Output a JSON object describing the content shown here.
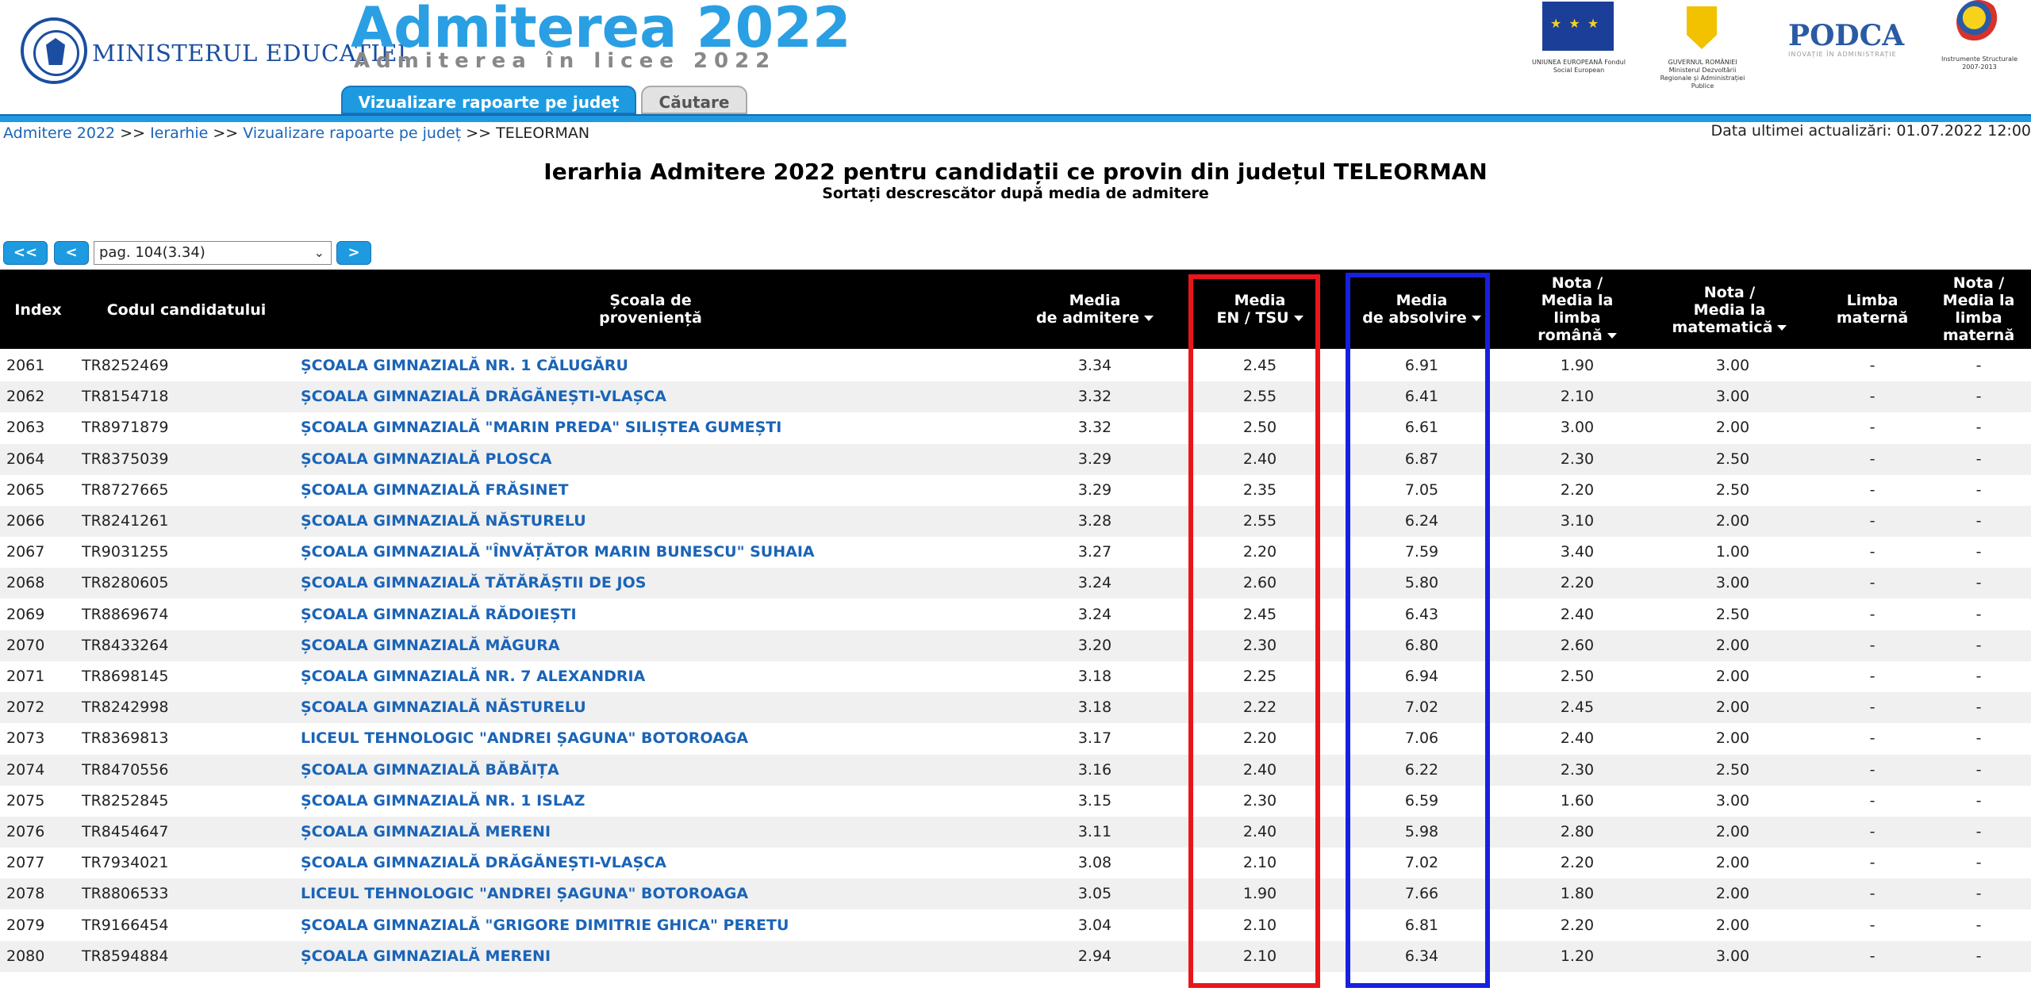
{
  "header": {
    "ministry_name": "MINISTERUL EDUCAȚIEI",
    "app_title": "Admiterea 2022",
    "app_subtitle": "Admiterea în licee 2022",
    "tabs": [
      {
        "label": "Vizualizare rapoarte pe județ",
        "active": true
      },
      {
        "label": "Căutare",
        "active": false
      }
    ],
    "logos": [
      {
        "caption": "UNIUNEA EUROPEANĂ Fondul Social European"
      },
      {
        "caption": "GUVERNUL ROMÂNIEI Ministerul Dezvoltării Regionale și Administrației Publice"
      },
      {
        "name": "PODCA",
        "tagline": "INOVAȚIE ÎN ADMINISTRAȚIE"
      },
      {
        "caption": "Instrumente Structurale 2007-2013"
      }
    ],
    "accent_color": "#1e9be0"
  },
  "breadcrumb": {
    "items": [
      "Admitere 2022",
      "Ierarhie",
      "Vizualizare rapoarte pe județ"
    ],
    "separator": ">>",
    "current": "TELEORMAN"
  },
  "last_update": "Data ultimei actualizări: 01.07.2022 12:00",
  "title": "Ierarhia Admitere 2022 pentru candidații ce provin din județul TELEORMAN",
  "subtitle": "Sortați descrescător după media de admitere",
  "pagination": {
    "first_label": "<<",
    "prev_label": "<",
    "next_label": ">",
    "selected_page": "pag. 104(3.34)"
  },
  "table": {
    "columns": [
      {
        "line1": "Index",
        "line2": "",
        "line3": "",
        "line4": ""
      },
      {
        "line1": "Codul candidatului",
        "line2": "",
        "line3": "",
        "line4": ""
      },
      {
        "line1": "Școala de",
        "line2": "proveniență",
        "line3": "",
        "line4": ""
      },
      {
        "line1": "Media",
        "line2": "de admitere",
        "line3": "",
        "line4": ""
      },
      {
        "line1": "Media",
        "line2": "EN / TSU",
        "line3": "",
        "line4": ""
      },
      {
        "line1": "Media",
        "line2": "de absolvire",
        "line3": "",
        "line4": ""
      },
      {
        "line1": "Nota /",
        "line2": "Media la",
        "line3": "limba",
        "line4": "română"
      },
      {
        "line1": "Nota /",
        "line2": "Media la",
        "line3": "matematică",
        "line4": ""
      },
      {
        "line1": "Limba",
        "line2": "maternă",
        "line3": "",
        "line4": ""
      },
      {
        "line1": "Nota /",
        "line2": "Media la",
        "line3": "limba",
        "line4": "maternă"
      }
    ],
    "rows": [
      [
        "2061",
        "TR8252469",
        "ȘCOALA GIMNAZIALĂ NR. 1 CĂLUGĂRU",
        "3.34",
        "2.45",
        "6.91",
        "1.90",
        "3.00",
        "-",
        "-"
      ],
      [
        "2062",
        "TR8154718",
        "ȘCOALA GIMNAZIALĂ DRĂGĂNEȘTI-VLAȘCA",
        "3.32",
        "2.55",
        "6.41",
        "2.10",
        "3.00",
        "-",
        "-"
      ],
      [
        "2063",
        "TR8971879",
        "ȘCOALA GIMNAZIALĂ \"MARIN PREDA\" SILIȘTEA GUMEȘTI",
        "3.32",
        "2.50",
        "6.61",
        "3.00",
        "2.00",
        "-",
        "-"
      ],
      [
        "2064",
        "TR8375039",
        "ȘCOALA GIMNAZIALĂ PLOSCA",
        "3.29",
        "2.40",
        "6.87",
        "2.30",
        "2.50",
        "-",
        "-"
      ],
      [
        "2065",
        "TR8727665",
        "ȘCOALA GIMNAZIALĂ FRĂSINET",
        "3.29",
        "2.35",
        "7.05",
        "2.20",
        "2.50",
        "-",
        "-"
      ],
      [
        "2066",
        "TR8241261",
        "ȘCOALA GIMNAZIALĂ NĂSTURELU",
        "3.28",
        "2.55",
        "6.24",
        "3.10",
        "2.00",
        "-",
        "-"
      ],
      [
        "2067",
        "TR9031255",
        "ȘCOALA GIMNAZIALĂ \"ÎNVĂȚĂTOR MARIN BUNESCU\" SUHAIA",
        "3.27",
        "2.20",
        "7.59",
        "3.40",
        "1.00",
        "-",
        "-"
      ],
      [
        "2068",
        "TR8280605",
        "ȘCOALA GIMNAZIALĂ TĂTĂRĂȘTII DE JOS",
        "3.24",
        "2.60",
        "5.80",
        "2.20",
        "3.00",
        "-",
        "-"
      ],
      [
        "2069",
        "TR8869674",
        "ȘCOALA GIMNAZIALĂ RĂDOIEȘTI",
        "3.24",
        "2.45",
        "6.43",
        "2.40",
        "2.50",
        "-",
        "-"
      ],
      [
        "2070",
        "TR8433264",
        "ȘCOALA GIMNAZIALĂ MĂGURA",
        "3.20",
        "2.30",
        "6.80",
        "2.60",
        "2.00",
        "-",
        "-"
      ],
      [
        "2071",
        "TR8698145",
        "ȘCOALA GIMNAZIALĂ NR. 7 ALEXANDRIA",
        "3.18",
        "2.25",
        "6.94",
        "2.50",
        "2.00",
        "-",
        "-"
      ],
      [
        "2072",
        "TR8242998",
        "ȘCOALA GIMNAZIALĂ NĂSTURELU",
        "3.18",
        "2.22",
        "7.02",
        "2.45",
        "2.00",
        "-",
        "-"
      ],
      [
        "2073",
        "TR8369813",
        "LICEUL TEHNOLOGIC \"ANDREI ȘAGUNA\" BOTOROAGA",
        "3.17",
        "2.20",
        "7.06",
        "2.40",
        "2.00",
        "-",
        "-"
      ],
      [
        "2074",
        "TR8470556",
        "ȘCOALA GIMNAZIALĂ BĂBĂIȚA",
        "3.16",
        "2.40",
        "6.22",
        "2.30",
        "2.50",
        "-",
        "-"
      ],
      [
        "2075",
        "TR8252845",
        "ȘCOALA GIMNAZIALĂ NR. 1 ISLAZ",
        "3.15",
        "2.30",
        "6.59",
        "1.60",
        "3.00",
        "-",
        "-"
      ],
      [
        "2076",
        "TR8454647",
        "ȘCOALA GIMNAZIALĂ MERENI",
        "3.11",
        "2.40",
        "5.98",
        "2.80",
        "2.00",
        "-",
        "-"
      ],
      [
        "2077",
        "TR7934021",
        "ȘCOALA GIMNAZIALĂ DRĂGĂNEȘTI-VLAȘCA",
        "3.08",
        "2.10",
        "7.02",
        "2.20",
        "2.00",
        "-",
        "-"
      ],
      [
        "2078",
        "TR8806533",
        "LICEUL TEHNOLOGIC \"ANDREI ȘAGUNA\" BOTOROAGA",
        "3.05",
        "1.90",
        "7.66",
        "1.80",
        "2.00",
        "-",
        "-"
      ],
      [
        "2079",
        "TR9166454",
        "ȘCOALA GIMNAZIALĂ \"GRIGORE DIMITRIE GHICA\" PERETU",
        "3.04",
        "2.10",
        "6.81",
        "2.20",
        "2.00",
        "-",
        "-"
      ],
      [
        "2080",
        "TR8594884",
        "ȘCOALA GIMNAZIALĂ MERENI",
        "2.94",
        "2.10",
        "6.34",
        "1.20",
        "3.00",
        "-",
        "-"
      ]
    ]
  },
  "highlights": [
    {
      "column": "Media EN / TSU",
      "color": "#e8161b"
    },
    {
      "column": "Media de absolvire",
      "color": "#1820e0"
    }
  ]
}
